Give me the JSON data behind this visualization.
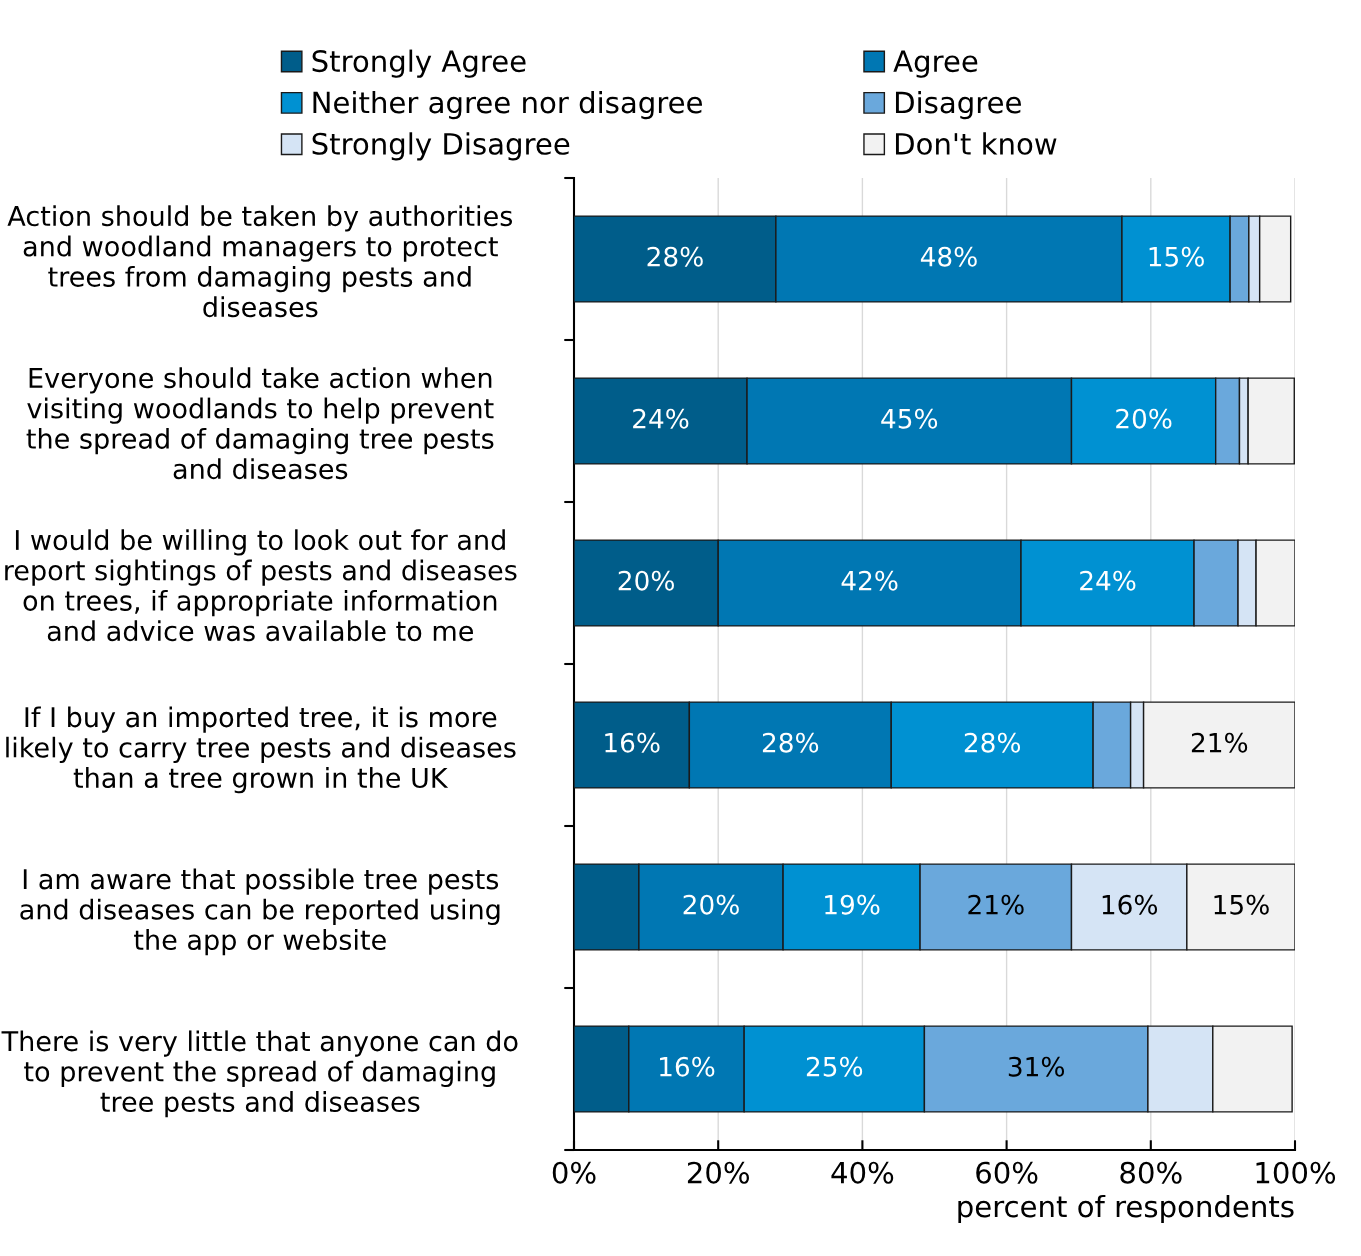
{
  "chart_data": {
    "type": "bar",
    "orientation": "horizontal",
    "stacked": true,
    "xlabel": "percent of respondents",
    "categories": [
      "Action should be taken by authorities and woodland managers to protect trees from damaging pests and diseases",
      "Everyone should take action when visiting woodlands to help prevent the spread of damaging tree pests and diseases",
      "I would be willing to look out for and report sightings of pests and diseases on trees, if appropriate information and advice was available to me",
      "If I buy an imported tree, it is more likely to carry tree pests and diseases than a tree grown in the UK",
      "I am aware that possible tree pests and diseases can be reported using the app or website",
      "There is very little that anyone can do to prevent the spread of damaging tree pests and diseases"
    ],
    "series": [
      {
        "name": "Strongly Agree",
        "color": "#005d8a",
        "values": [
          28,
          24,
          20,
          16,
          9,
          7.6
        ],
        "value_labels": [
          "28%",
          "24%",
          "20%",
          "16%",
          null,
          null
        ]
      },
      {
        "name": "Agree",
        "color": "#0077b3",
        "values": [
          48,
          45,
          42,
          28,
          20,
          16
        ],
        "value_labels": [
          "48%",
          "45%",
          "42%",
          "28%",
          "20%",
          "16%"
        ]
      },
      {
        "name": "Neither agree nor disagree",
        "color": "#0091d2",
        "values": [
          15,
          20,
          24,
          28,
          19,
          25
        ],
        "value_labels": [
          "15%",
          "20%",
          "24%",
          "28%",
          "19%",
          "25%"
        ]
      },
      {
        "name": "Disagree",
        "color": "#6aa8dc",
        "values": [
          2.6,
          3.3,
          6.1,
          5.2,
          21,
          31
        ],
        "value_labels": [
          null,
          null,
          null,
          null,
          "21%",
          "31%"
        ]
      },
      {
        "name": "Strongly Disagree",
        "color": "#d5e4f5",
        "values": [
          1.5,
          1.2,
          2.5,
          1.8,
          16,
          9
        ],
        "value_labels": [
          null,
          null,
          null,
          null,
          "16%",
          null
        ]
      },
      {
        "name": "Don't know",
        "color": "#f2f2f2",
        "values": [
          4.3,
          6.4,
          5.4,
          21,
          15,
          11
        ],
        "value_labels": [
          null,
          null,
          null,
          "21%",
          "15%",
          null
        ]
      }
    ],
    "xlim": [
      0,
      100
    ],
    "xticks": [
      {
        "value": 0,
        "label": "0%"
      },
      {
        "value": 20,
        "label": "20%"
      },
      {
        "value": 40,
        "label": "40%"
      },
      {
        "value": 60,
        "label": "60%"
      },
      {
        "value": 80,
        "label": "80%"
      },
      {
        "value": 100,
        "label": "100%"
      }
    ],
    "grid": "x",
    "legend": "top"
  }
}
